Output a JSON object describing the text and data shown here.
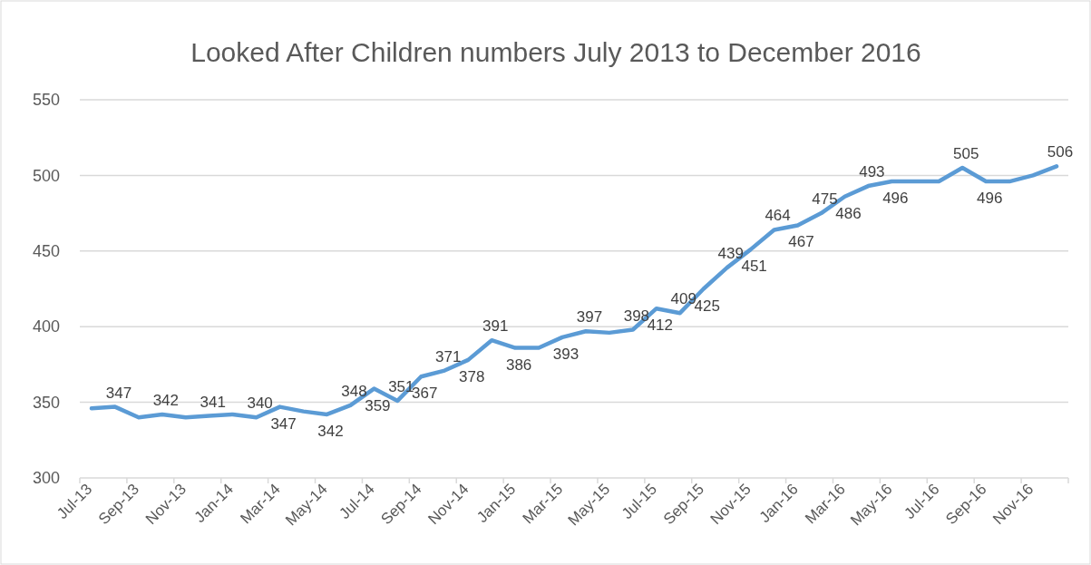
{
  "chart_data": {
    "type": "line",
    "title": "Looked After Children numbers July 2013 to December 2016",
    "categories": [
      "Jul-13",
      null,
      "Sep-13",
      null,
      "Nov-13",
      null,
      "Jan-14",
      null,
      "Mar-14",
      null,
      "May-14",
      null,
      "Jul-14",
      null,
      "Sep-14",
      null,
      "Nov-14",
      null,
      "Jan-15",
      null,
      "Mar-15",
      null,
      "May-15",
      null,
      "Jul-15",
      null,
      "Sep-15",
      null,
      "Nov-15",
      null,
      "Jan-16",
      null,
      "Mar-16",
      null,
      "May-16",
      null,
      "Jul-16",
      null,
      "Sep-16",
      null,
      "Nov-16",
      null
    ],
    "series": [
      {
        "color": "#5b9bd5",
        "values": [
          346,
          347,
          340,
          342,
          340,
          341,
          342,
          340,
          347,
          344,
          342,
          348,
          359,
          351,
          367,
          371,
          378,
          391,
          386,
          386,
          393,
          397,
          396,
          398,
          412,
          409,
          425,
          439,
          451,
          464,
          467,
          475,
          486,
          493,
          496,
          496,
          496,
          505,
          496,
          496,
          500,
          506
        ],
        "value_labels": [
          null,
          "347",
          null,
          "342",
          null,
          "341",
          null,
          "340",
          "347",
          null,
          "342",
          "348",
          "359",
          "351",
          "367",
          "371",
          "378",
          "391",
          "386",
          null,
          "393",
          "397",
          null,
          "398",
          "412",
          "409",
          "425",
          "439",
          "451",
          "464",
          "467",
          "475",
          "486",
          "493",
          "496",
          null,
          null,
          "505",
          "496",
          null,
          null,
          "506"
        ]
      }
    ],
    "ylim": [
      300,
      550
    ],
    "yticks": [
      300,
      350,
      400,
      450,
      500,
      550
    ],
    "grid": "y",
    "marker": "none",
    "line_style": "solid"
  }
}
